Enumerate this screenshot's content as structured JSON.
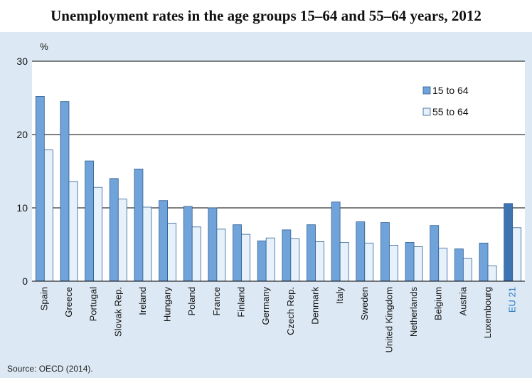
{
  "source": "Source: OECD (2014).",
  "chart_data": {
    "type": "bar",
    "title": "Unemployment rates in the age groups 15–64 and 55–64 years, 2012",
    "ylabel": "%",
    "xlabel": "",
    "ylim": [
      0,
      30
    ],
    "yticks": [
      "0",
      "10",
      "20",
      "30"
    ],
    "grid": true,
    "legend_position": "top-right",
    "categories": [
      "Spain",
      "Greece",
      "Portugal",
      "Slovak Rep.",
      "Ireland",
      "Hungary",
      "Poland",
      "France",
      "Finland",
      "Germany",
      "Czech Rep.",
      "Denmark",
      "Italy",
      "Sweden",
      "United Kingdom",
      "Netherlands",
      "Belgium",
      "Austria",
      "Luxembourg",
      "EU 21"
    ],
    "highlight_category": "EU 21",
    "series": [
      {
        "name": "15 to 64",
        "color": "#6fa3d9",
        "highlight_color": "#3f74b3",
        "values": [
          25.2,
          24.5,
          16.4,
          14.0,
          15.3,
          11.0,
          10.2,
          10.0,
          7.7,
          5.5,
          7.0,
          7.7,
          10.8,
          8.1,
          8.0,
          5.3,
          7.6,
          4.4,
          5.2,
          10.6
        ]
      },
      {
        "name": "55 to 64",
        "color": "#e6f1fb",
        "highlight_color": "#e6f1fb",
        "values": [
          17.9,
          13.6,
          12.8,
          11.2,
          10.1,
          7.9,
          7.4,
          7.1,
          6.4,
          5.9,
          5.8,
          5.4,
          5.3,
          5.2,
          4.9,
          4.7,
          4.5,
          3.1,
          2.1,
          7.3
        ]
      }
    ]
  }
}
